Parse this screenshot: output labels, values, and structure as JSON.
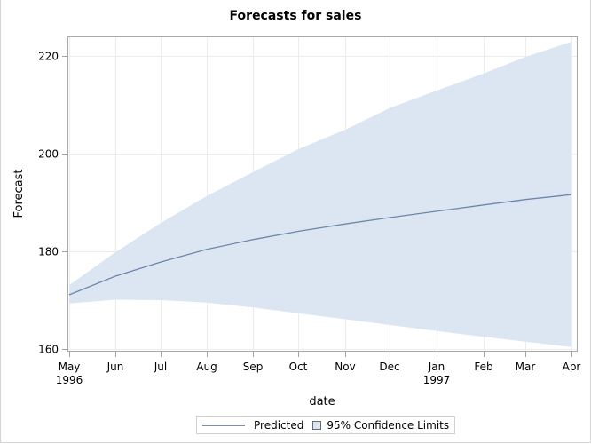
{
  "title": "Forecasts for sales",
  "legend": {
    "predicted_label": "Predicted",
    "ci_label": "95% Confidence Limits"
  },
  "colors": {
    "predicted_line": "#6f86aa",
    "ci_band": "#dce6f2",
    "grid": "#ececec",
    "axis": "#a0a0a0"
  },
  "chart_data": {
    "type": "line",
    "title": "Forecasts for sales",
    "xlabel": "date",
    "ylabel": "Forecast",
    "ylim": [
      160,
      223
    ],
    "yticks": [
      160,
      180,
      200,
      220
    ],
    "x": [
      "May 1996",
      "Jun 1996",
      "Jul 1996",
      "Aug 1996",
      "Sep 1996",
      "Oct 1996",
      "Nov 1996",
      "Dec 1996",
      "Jan 1997",
      "Feb 1997",
      "Mar 1997",
      "Apr 1997"
    ],
    "xtick_labels": [
      {
        "line1": "May",
        "line2": "1996"
      },
      {
        "line1": "Jun",
        "line2": ""
      },
      {
        "line1": "Jul",
        "line2": ""
      },
      {
        "line1": "Aug",
        "line2": ""
      },
      {
        "line1": "Sep",
        "line2": ""
      },
      {
        "line1": "Oct",
        "line2": ""
      },
      {
        "line1": "Nov",
        "line2": ""
      },
      {
        "line1": "Dec",
        "line2": ""
      },
      {
        "line1": "Jan",
        "line2": "1997"
      },
      {
        "line1": "Feb",
        "line2": ""
      },
      {
        "line1": "Mar",
        "line2": ""
      },
      {
        "line1": "Apr",
        "line2": ""
      }
    ],
    "series": [
      {
        "name": "Predicted",
        "type": "line",
        "values": [
          171.1,
          174.9,
          177.8,
          180.4,
          182.4,
          184.1,
          185.6,
          186.9,
          188.2,
          189.5,
          190.6,
          191.6
        ]
      },
      {
        "name": "95% Confidence Limits (Lower)",
        "type": "band-lower",
        "values": [
          169.3,
          170.1,
          170.0,
          169.5,
          168.5,
          167.3,
          166.1,
          164.9,
          163.7,
          162.5,
          161.5,
          160.4
        ]
      },
      {
        "name": "95% Confidence Limits (Upper)",
        "type": "band-upper",
        "values": [
          173.1,
          179.8,
          185.8,
          191.3,
          196.2,
          200.9,
          204.9,
          209.3,
          212.9,
          216.4,
          219.8,
          222.9
        ]
      }
    ],
    "grid": true,
    "legend_position": "bottom"
  }
}
